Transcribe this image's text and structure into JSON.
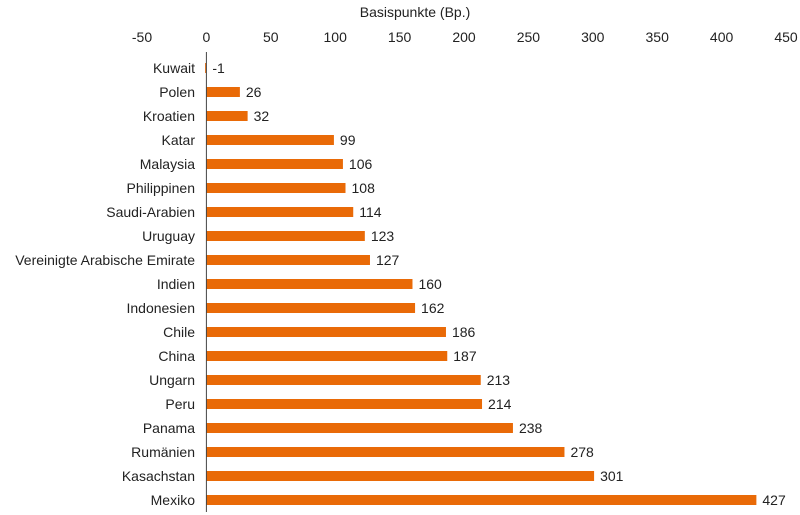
{
  "chart_data": {
    "type": "bar",
    "orientation": "horizontal",
    "xlabel": "Basispunkte (Bp.)",
    "xaxis_position": "top",
    "xlim": [
      -50,
      450
    ],
    "xticks": [
      -50,
      0,
      50,
      100,
      150,
      200,
      250,
      300,
      350,
      400,
      450
    ],
    "categories": [
      "Kuwait",
      "Polen",
      "Kroatien",
      "Katar",
      "Malaysia",
      "Philippinen",
      "Saudi-Arabien",
      "Uruguay",
      "Vereinigte Arabische Emirate",
      "Indien",
      "Indonesien",
      "Chile",
      "China",
      "Ungarn",
      "Peru",
      "Panama",
      "Rumänien",
      "Kasachstan",
      "Mexiko"
    ],
    "values": [
      -1,
      26,
      32,
      99,
      106,
      108,
      114,
      123,
      127,
      160,
      162,
      186,
      187,
      213,
      214,
      238,
      278,
      301,
      427
    ],
    "bar_color": "#E96A07",
    "grid": false,
    "legend": "none"
  }
}
